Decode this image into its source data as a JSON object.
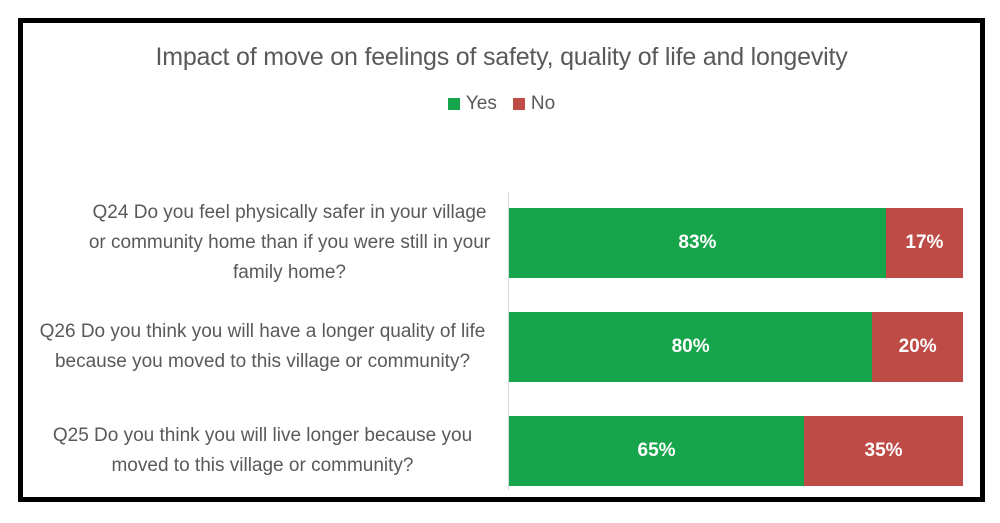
{
  "chart_data": {
    "type": "bar",
    "orientation": "horizontal",
    "stacked": true,
    "title": "Impact of move on feelings of safety, quality of life and longevity",
    "categories": [
      "Q24 Do you feel physically safer in your village or community home than if you were still in your family home?",
      "Q26 Do you think you will have a longer quality of life because you moved to this village or community?",
      "Q25 Do you think you will live longer because you moved to this village or community?"
    ],
    "series": [
      {
        "name": "Yes",
        "color": "#17A54C",
        "values": [
          83,
          80,
          65
        ],
        "labels": [
          "83%",
          "80%",
          "65%"
        ]
      },
      {
        "name": "No",
        "color": "#BF4B47",
        "values": [
          17,
          20,
          35
        ],
        "labels": [
          "17%",
          "20%",
          "35%"
        ]
      }
    ],
    "xlim": [
      0,
      100
    ],
    "value_format": "percent",
    "legend_position": "top",
    "grid": false,
    "colors": {
      "data_label": "#FFFFFF",
      "text": "#595959",
      "axis_line": "#D9D9D9",
      "frame_border": "#000000"
    }
  }
}
